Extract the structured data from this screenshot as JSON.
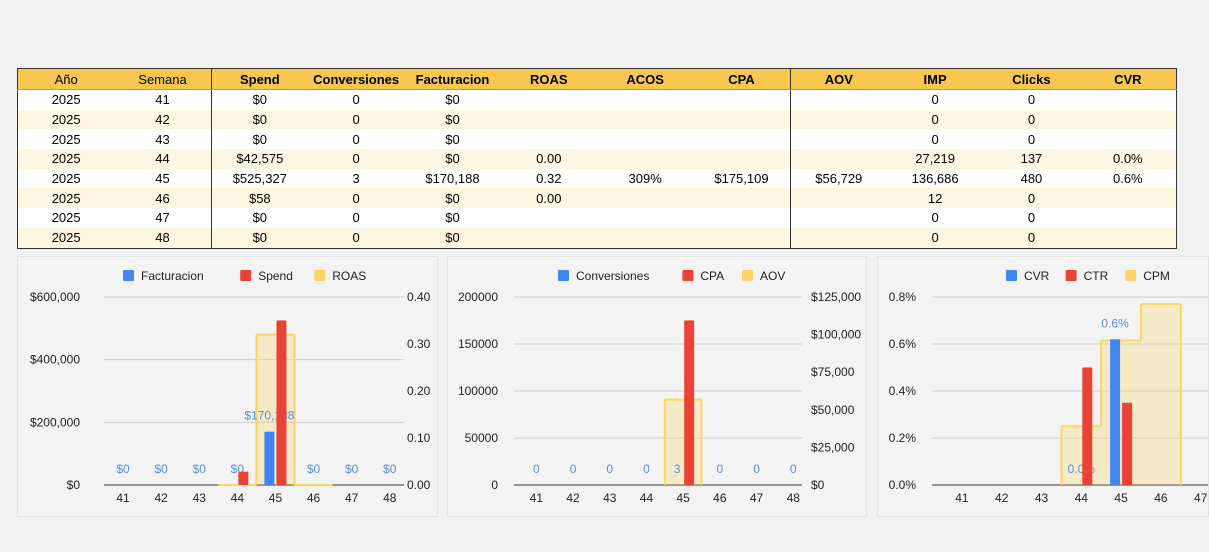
{
  "table": {
    "headers": [
      "Año",
      "Semana",
      "Spend",
      "Conversiones",
      "Facturacion",
      "ROAS",
      "ACOS",
      "CPA",
      "AOV",
      "IMP",
      "Clicks",
      "CVR"
    ],
    "rows": [
      [
        "2025",
        "41",
        "$0",
        "0",
        "$0",
        "",
        "",
        "",
        "",
        "0",
        "0",
        ""
      ],
      [
        "2025",
        "42",
        "$0",
        "0",
        "$0",
        "",
        "",
        "",
        "",
        "0",
        "0",
        ""
      ],
      [
        "2025",
        "43",
        "$0",
        "0",
        "$0",
        "",
        "",
        "",
        "",
        "0",
        "0",
        ""
      ],
      [
        "2025",
        "44",
        "$42,575",
        "0",
        "$0",
        "0.00",
        "",
        "",
        "",
        "27,219",
        "137",
        "0.0%"
      ],
      [
        "2025",
        "45",
        "$525,327",
        "3",
        "$170,188",
        "0.32",
        "309%",
        "$175,109",
        "$56,729",
        "136,686",
        "480",
        "0.6%"
      ],
      [
        "2025",
        "46",
        "$58",
        "0",
        "$0",
        "0.00",
        "",
        "",
        "",
        "12",
        "0",
        ""
      ],
      [
        "2025",
        "47",
        "$0",
        "0",
        "$0",
        "",
        "",
        "",
        "",
        "0",
        "0",
        ""
      ],
      [
        "2025",
        "48",
        "$0",
        "0",
        "$0",
        "",
        "",
        "",
        "",
        "0",
        "0",
        ""
      ]
    ]
  },
  "chart_data": [
    {
      "type": "bar",
      "categories": [
        "41",
        "42",
        "43",
        "44",
        "45",
        "46",
        "47",
        "48"
      ],
      "series": [
        {
          "name": "Facturacion",
          "kind": "bar",
          "axis": "left",
          "color": "#4285f4",
          "values": [
            0,
            0,
            0,
            0,
            170188,
            0,
            0,
            0
          ],
          "labels": [
            "$0",
            "$0",
            "$0",
            "$0",
            "$170,188",
            "$0",
            "$0",
            "$0"
          ]
        },
        {
          "name": "Spend",
          "kind": "bar",
          "axis": "left",
          "color": "#ea4335",
          "values": [
            0,
            0,
            0,
            42575,
            525327,
            58,
            0,
            0
          ]
        },
        {
          "name": "ROAS",
          "kind": "stepped-area",
          "axis": "right",
          "color": "#fbd666",
          "values": [
            null,
            null,
            null,
            0,
            0.32,
            0,
            null,
            null
          ]
        }
      ],
      "left_axis": {
        "ticks": [
          "$0",
          "$200,000",
          "$400,000",
          "$600,000"
        ],
        "range": [
          0,
          600000
        ]
      },
      "right_axis": {
        "ticks": [
          "0.00",
          "0.10",
          "0.20",
          "0.30",
          "0.40"
        ],
        "range": [
          0,
          0.4
        ]
      },
      "legend": "top",
      "grid": true
    },
    {
      "type": "bar",
      "categories": [
        "41",
        "42",
        "43",
        "44",
        "45",
        "46",
        "47",
        "48"
      ],
      "series": [
        {
          "name": "Conversiones",
          "kind": "bar",
          "axis": "left",
          "color": "#4285f4",
          "values": [
            0,
            0,
            0,
            0,
            3,
            0,
            0,
            0
          ],
          "labels": [
            "0",
            "0",
            "0",
            "0",
            "3",
            "0",
            "0",
            "0"
          ]
        },
        {
          "name": "CPA",
          "kind": "bar",
          "axis": "left",
          "color": "#ea4335",
          "values": [
            0,
            0,
            0,
            0,
            175109,
            0,
            0,
            0
          ]
        },
        {
          "name": "AOV",
          "kind": "stepped-area",
          "axis": "right",
          "color": "#fbd666",
          "values": [
            null,
            null,
            null,
            null,
            56729,
            null,
            null,
            null
          ]
        }
      ],
      "left_axis": {
        "ticks": [
          "0",
          "50000",
          "100000",
          "150000",
          "200000"
        ],
        "range": [
          0,
          200000
        ]
      },
      "right_axis": {
        "ticks": [
          "$0",
          "$25,000",
          "$50,000",
          "$75,000",
          "$100,000",
          "$125,000"
        ],
        "range": [
          0,
          125000
        ]
      },
      "legend": "top",
      "grid": true
    },
    {
      "type": "bar",
      "categories": [
        "41",
        "42",
        "43",
        "44",
        "45",
        "46",
        "47"
      ],
      "series": [
        {
          "name": "CVR",
          "kind": "bar",
          "axis": "left",
          "color": "#4285f4",
          "values": [
            0,
            0,
            0,
            0,
            0.62,
            0,
            0
          ],
          "labels": [
            null,
            null,
            null,
            "0.0%",
            "0.6%",
            null,
            null
          ]
        },
        {
          "name": "CTR",
          "kind": "bar",
          "axis": "left",
          "color": "#ea4335",
          "values": [
            0,
            0,
            0,
            0.5,
            0.35,
            0,
            0
          ]
        },
        {
          "name": "CPM",
          "kind": "stepped-area",
          "axis": "left",
          "color": "#fbd666",
          "values": [
            null,
            null,
            null,
            0.25,
            0.615,
            0.77,
            null
          ]
        }
      ],
      "left_axis": {
        "ticks": [
          "0.0%",
          "0.2%",
          "0.4%",
          "0.6%",
          "0.8%"
        ],
        "range": [
          0,
          0.8
        ]
      },
      "legend": "top",
      "grid": true
    }
  ]
}
